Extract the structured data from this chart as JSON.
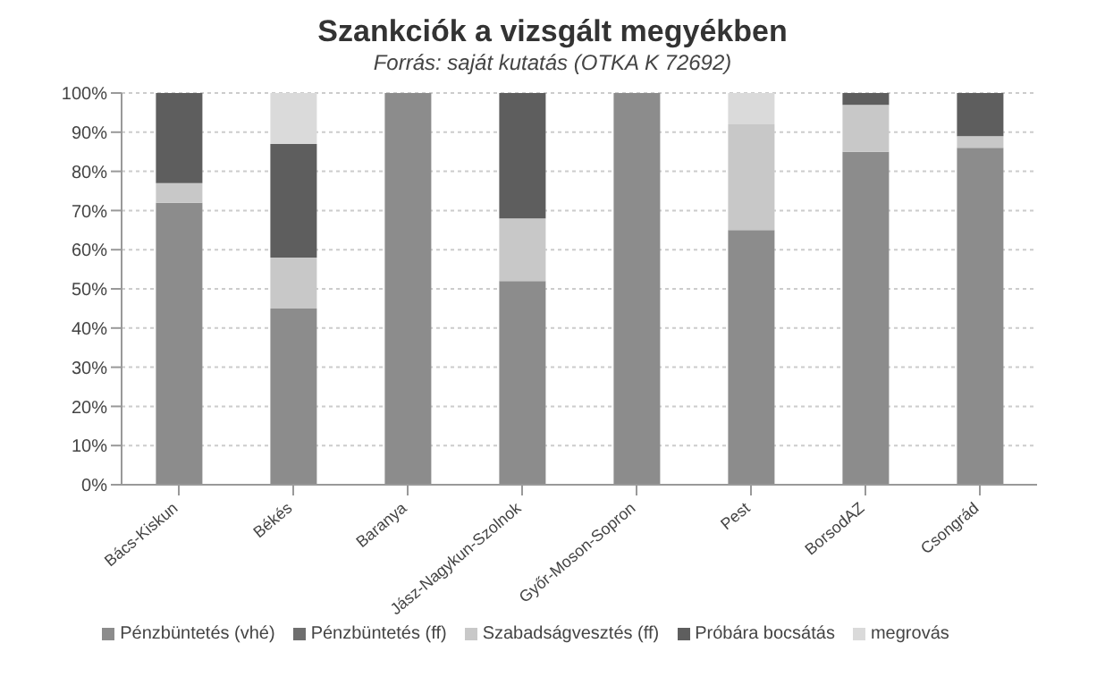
{
  "chart_data": {
    "type": "bar",
    "stacked": true,
    "title": "Szankciók a vizsgált megyékben",
    "subtitle": "Forrás: saját kutatás (OTKA K 72692)",
    "categories": [
      "Bács-Kiskun",
      "Békés",
      "Baranya",
      "Jász-Nagykun-Szolnok",
      "Győr-Moson-Sopron",
      "Pest",
      "BorsodAZ",
      "Csongrád"
    ],
    "series": [
      {
        "name": "Pénzbüntetés (vhé)",
        "color": "#8c8c8c",
        "values": [
          72,
          45,
          100,
          52,
          100,
          65,
          85,
          86
        ]
      },
      {
        "name": "Pénzbüntetés (ff)",
        "color": "#6e6e6e",
        "values": [
          0,
          0,
          0,
          0,
          0,
          0,
          0,
          0
        ]
      },
      {
        "name": "Szabadságvesztés (ff)",
        "color": "#c8c8c8",
        "values": [
          5,
          13,
          0,
          16,
          0,
          27,
          12,
          3
        ]
      },
      {
        "name": "Próbára bocsátás",
        "color": "#5e5e5e",
        "values": [
          23,
          29,
          0,
          32,
          0,
          0,
          3,
          11
        ]
      },
      {
        "name": "megrovás",
        "color": "#dadada",
        "values": [
          0,
          13,
          0,
          0,
          0,
          8,
          0,
          0
        ]
      }
    ],
    "ylim": [
      0,
      100
    ],
    "yticks": [
      {
        "value": 0,
        "label": "0%"
      },
      {
        "value": 10,
        "label": "10%"
      },
      {
        "value": 20,
        "label": "20%"
      },
      {
        "value": 30,
        "label": "30%"
      },
      {
        "value": 40,
        "label": "40%"
      },
      {
        "value": 50,
        "label": "50%"
      },
      {
        "value": 60,
        "label": "60%"
      },
      {
        "value": 70,
        "label": "70%"
      },
      {
        "value": 80,
        "label": "80%"
      },
      {
        "value": 90,
        "label": "90%"
      },
      {
        "value": 100,
        "label": "100%"
      }
    ],
    "grid": "y",
    "legend": "bottom"
  }
}
